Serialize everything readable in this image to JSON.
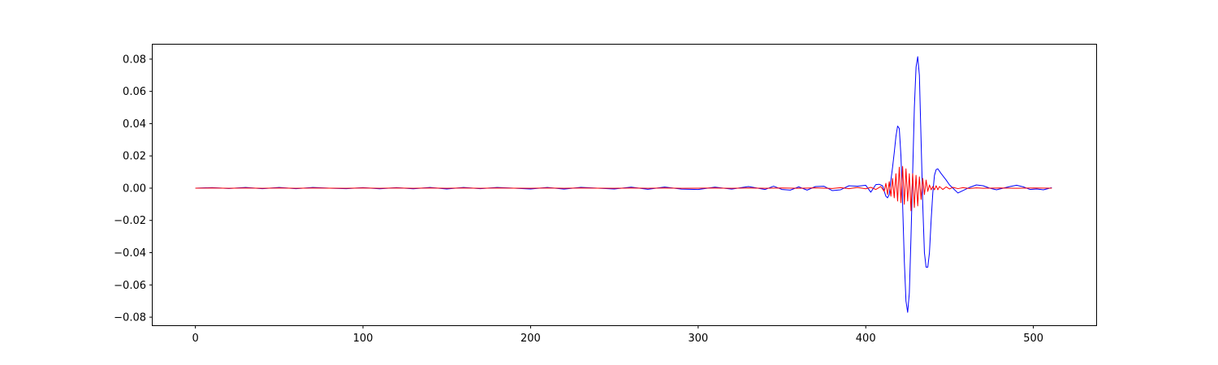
{
  "chart_data": {
    "type": "line",
    "title": "",
    "xlabel": "",
    "ylabel": "",
    "xlim": [
      -25.5,
      537.5
    ],
    "ylim": [
      -0.085,
      0.089
    ],
    "grid": false,
    "legend": "none",
    "x_ticks": [
      {
        "value": 0,
        "label": "0"
      },
      {
        "value": 100,
        "label": "100"
      },
      {
        "value": 200,
        "label": "200"
      },
      {
        "value": 300,
        "label": "300"
      },
      {
        "value": 400,
        "label": "400"
      },
      {
        "value": 500,
        "label": "500"
      }
    ],
    "y_ticks": [
      {
        "value": 0.08,
        "label": "0.08"
      },
      {
        "value": 0.06,
        "label": "0.06"
      },
      {
        "value": 0.04,
        "label": "0.04"
      },
      {
        "value": 0.02,
        "label": "0.02"
      },
      {
        "value": 0.0,
        "label": "0.00"
      },
      {
        "value": -0.02,
        "label": "−0.02"
      },
      {
        "value": -0.04,
        "label": "−0.04"
      },
      {
        "value": -0.06,
        "label": "−0.06"
      },
      {
        "value": -0.08,
        "label": "−0.08"
      }
    ],
    "series": [
      {
        "color": "#0000ff",
        "points": [
          [
            0,
            0.0
          ],
          [
            10,
            0.0003
          ],
          [
            20,
            -0.0002
          ],
          [
            30,
            0.0004
          ],
          [
            40,
            -0.0003
          ],
          [
            50,
            0.0004
          ],
          [
            60,
            -0.0003
          ],
          [
            70,
            0.0004
          ],
          [
            80,
            0.0
          ],
          [
            90,
            -0.0003
          ],
          [
            100,
            0.0003
          ],
          [
            110,
            -0.0004
          ],
          [
            120,
            0.0003
          ],
          [
            130,
            -0.0004
          ],
          [
            140,
            0.0004
          ],
          [
            150,
            -0.0005
          ],
          [
            160,
            0.0004
          ],
          [
            170,
            -0.0003
          ],
          [
            180,
            0.0004
          ],
          [
            190,
            0.0
          ],
          [
            200,
            -0.0005
          ],
          [
            210,
            0.0004
          ],
          [
            220,
            -0.0006
          ],
          [
            230,
            0.0005
          ],
          [
            240,
            0.0
          ],
          [
            250,
            -0.0005
          ],
          [
            260,
            0.0006
          ],
          [
            270,
            -0.0007
          ],
          [
            280,
            0.0007
          ],
          [
            290,
            -0.0006
          ],
          [
            300,
            -0.0008
          ],
          [
            310,
            0.0006
          ],
          [
            320,
            -0.0006
          ],
          [
            330,
            0.001
          ],
          [
            340,
            -0.0008
          ],
          [
            345,
            0.0012
          ],
          [
            350,
            -0.0008
          ],
          [
            355,
            -0.0012
          ],
          [
            360,
            0.0008
          ],
          [
            365,
            -0.0012
          ],
          [
            370,
            0.001
          ],
          [
            375,
            0.0012
          ],
          [
            380,
            -0.0015
          ],
          [
            385,
            -0.001
          ],
          [
            390,
            0.0015
          ],
          [
            395,
            0.0012
          ],
          [
            400,
            0.0018
          ],
          [
            403,
            -0.0025
          ],
          [
            406,
            0.0022
          ],
          [
            408,
            0.0024
          ],
          [
            410,
            0.0015
          ],
          [
            412,
            -0.005
          ],
          [
            413,
            -0.006
          ],
          [
            414,
            -0.004
          ],
          [
            415,
            0.005
          ],
          [
            416,
            0.013
          ],
          [
            417,
            0.022
          ],
          [
            418,
            0.032
          ],
          [
            419,
            0.0385
          ],
          [
            420,
            0.037
          ],
          [
            421,
            0.02
          ],
          [
            422,
            -0.01
          ],
          [
            423,
            -0.045
          ],
          [
            424,
            -0.07
          ],
          [
            425,
            -0.077
          ],
          [
            426,
            -0.065
          ],
          [
            427,
            -0.03
          ],
          [
            428,
            0.01
          ],
          [
            429,
            0.05
          ],
          [
            430,
            0.075
          ],
          [
            431,
            0.0815
          ],
          [
            432,
            0.07
          ],
          [
            433,
            0.03
          ],
          [
            434,
            -0.01
          ],
          [
            435,
            -0.04
          ],
          [
            436,
            -0.049
          ],
          [
            437,
            -0.049
          ],
          [
            438,
            -0.04
          ],
          [
            439,
            -0.02
          ],
          [
            440,
            -0.003
          ],
          [
            441,
            0.008
          ],
          [
            442,
            0.0115
          ],
          [
            443,
            0.012
          ],
          [
            445,
            0.009
          ],
          [
            448,
            0.005
          ],
          [
            450,
            0.002
          ],
          [
            452,
            0.0
          ],
          [
            455,
            -0.003
          ],
          [
            458,
            -0.0015
          ],
          [
            462,
            0.0005
          ],
          [
            466,
            0.002
          ],
          [
            470,
            0.0015
          ],
          [
            474,
            0.0
          ],
          [
            478,
            -0.001
          ],
          [
            482,
            0.0
          ],
          [
            486,
            0.001
          ],
          [
            490,
            0.0018
          ],
          [
            494,
            0.0008
          ],
          [
            498,
            -0.0008
          ],
          [
            502,
            -0.0005
          ],
          [
            506,
            -0.001
          ],
          [
            511,
            0.0003
          ]
        ]
      },
      {
        "color": "#ff0000",
        "points": [
          [
            0,
            0.0
          ],
          [
            10,
            0.0001
          ],
          [
            20,
            -0.0001
          ],
          [
            30,
            0.0001
          ],
          [
            40,
            -0.0001
          ],
          [
            50,
            0.0001
          ],
          [
            60,
            -0.0001
          ],
          [
            70,
            0.0001
          ],
          [
            80,
            0.0
          ],
          [
            90,
            -0.0001
          ],
          [
            100,
            0.0001
          ],
          [
            110,
            -0.0001
          ],
          [
            120,
            0.0001
          ],
          [
            130,
            -0.0001
          ],
          [
            140,
            0.0001
          ],
          [
            150,
            -0.0001
          ],
          [
            160,
            0.0001
          ],
          [
            170,
            -0.0001
          ],
          [
            180,
            0.0001
          ],
          [
            190,
            0.0
          ],
          [
            200,
            -0.0001
          ],
          [
            210,
            0.0001
          ],
          [
            220,
            -0.0001
          ],
          [
            230,
            0.0001
          ],
          [
            240,
            0.0
          ],
          [
            250,
            -0.0001
          ],
          [
            260,
            0.0001
          ],
          [
            270,
            -0.0001
          ],
          [
            280,
            0.0001
          ],
          [
            290,
            -0.0001
          ],
          [
            300,
            0.0
          ],
          [
            310,
            0.0001
          ],
          [
            320,
            -0.0001
          ],
          [
            330,
            0.0001
          ],
          [
            340,
            -0.0001
          ],
          [
            350,
            0.0001
          ],
          [
            360,
            -0.0001
          ],
          [
            370,
            0.0002
          ],
          [
            380,
            -0.0002
          ],
          [
            385,
            0.0003
          ],
          [
            390,
            -0.0003
          ],
          [
            395,
            0.0004
          ],
          [
            400,
            -0.0004
          ],
          [
            403,
            0.0005
          ],
          [
            406,
            -0.0008
          ],
          [
            409,
            0.001
          ],
          [
            411,
            -0.002
          ],
          [
            412,
            0.003
          ],
          [
            413,
            -0.004
          ],
          [
            414,
            0.004
          ],
          [
            415,
            -0.005
          ],
          [
            416,
            0.006
          ],
          [
            417,
            -0.006
          ],
          [
            418,
            0.009
          ],
          [
            419,
            -0.008
          ],
          [
            420,
            0.013
          ],
          [
            421,
            -0.009
          ],
          [
            422,
            0.0135
          ],
          [
            423,
            -0.01
          ],
          [
            424,
            0.012
          ],
          [
            425,
            -0.008
          ],
          [
            426,
            0.009
          ],
          [
            427,
            -0.014
          ],
          [
            428,
            0.009
          ],
          [
            429,
            -0.012
          ],
          [
            430,
            0.008
          ],
          [
            431,
            -0.011
          ],
          [
            432,
            0.007
          ],
          [
            433,
            -0.007
          ],
          [
            434,
            0.006
          ],
          [
            435,
            -0.004
          ],
          [
            436,
            0.005
          ],
          [
            437,
            -0.002
          ],
          [
            438,
            0.002
          ],
          [
            439,
            -0.001
          ],
          [
            440,
            0.001
          ],
          [
            441,
            -0.001
          ],
          [
            442,
            0.0015
          ],
          [
            443,
            -0.001
          ],
          [
            444,
            0.001
          ],
          [
            446,
            -0.0008
          ],
          [
            448,
            0.0008
          ],
          [
            450,
            -0.0005
          ],
          [
            452,
            0.0005
          ],
          [
            455,
            -0.0003
          ],
          [
            458,
            0.0003
          ],
          [
            462,
            -0.0002
          ],
          [
            466,
            0.0002
          ],
          [
            470,
            -0.0001
          ],
          [
            480,
            0.0001
          ],
          [
            490,
            -0.0001
          ],
          [
            500,
            0.0001
          ],
          [
            511,
            0.0
          ]
        ]
      }
    ]
  }
}
